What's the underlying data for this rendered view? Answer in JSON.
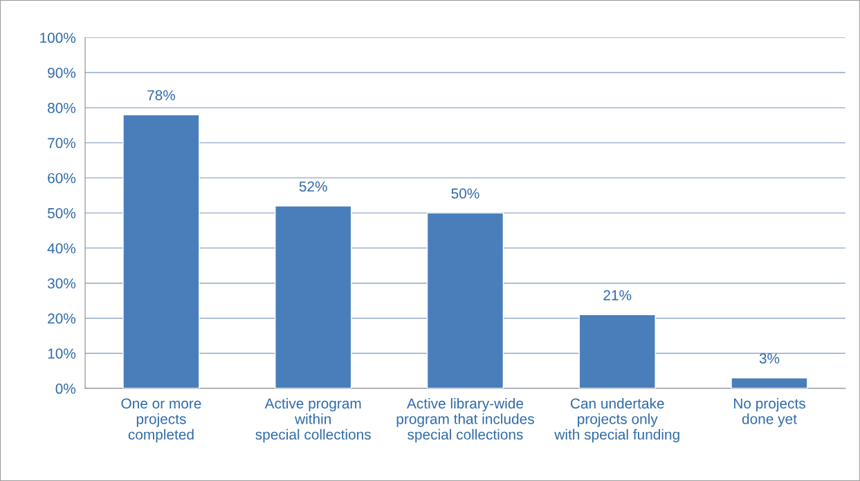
{
  "chart_data": {
    "type": "bar",
    "categories": [
      "One or more\nprojects\ncompleted",
      "Active program\nwithin\nspecial collections",
      "Active library-wide\nprogram that includes\nspecial collections",
      "Can undertake\nprojects only\nwith special funding",
      "No projects\ndone yet"
    ],
    "values": [
      78,
      52,
      50,
      21,
      3
    ],
    "color": "#4a7ebb",
    "ylim": [
      0,
      100
    ],
    "yticks": [
      {
        "value": 0,
        "label": "0%"
      },
      {
        "value": 10,
        "label": "10%"
      },
      {
        "value": 20,
        "label": "20%"
      },
      {
        "value": 30,
        "label": "30%"
      },
      {
        "value": 40,
        "label": "40%"
      },
      {
        "value": 50,
        "label": "50%"
      },
      {
        "value": 60,
        "label": "60%"
      },
      {
        "value": 70,
        "label": "70%"
      },
      {
        "value": 80,
        "label": "80%"
      },
      {
        "value": 90,
        "label": "90%"
      },
      {
        "value": 100,
        "label": "100%"
      }
    ],
    "value_labels": [
      "78%",
      "52%",
      "50%",
      "21%",
      "3%"
    ],
    "grid": "y",
    "legend": false
  }
}
